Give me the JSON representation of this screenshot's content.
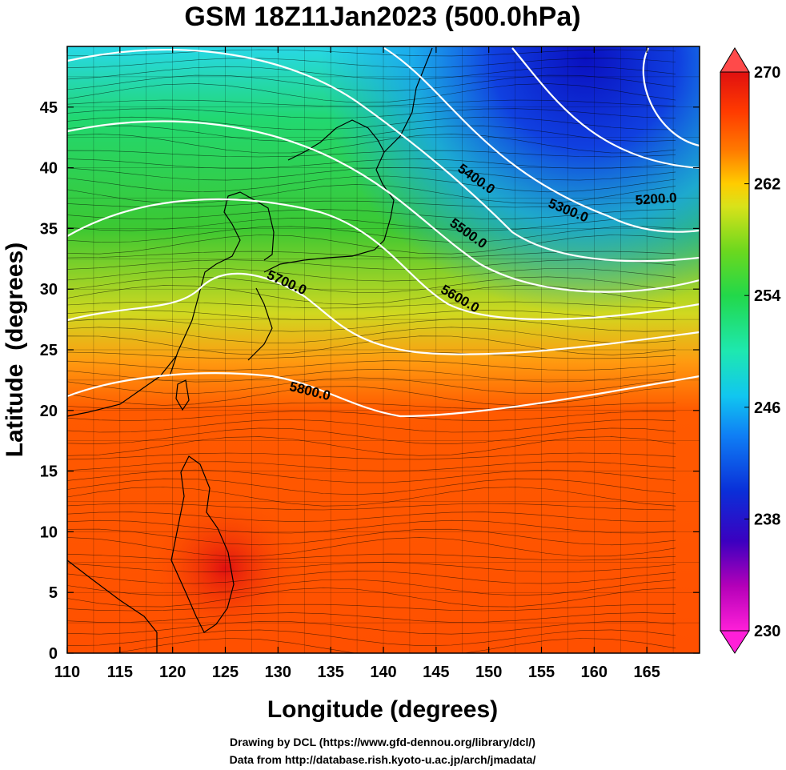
{
  "title": "GSM 18Z11Jan2023 (500.0hPa)",
  "x_axis": {
    "label": "Longitude (degrees)",
    "ticks": [
      "110",
      "115",
      "120",
      "125",
      "130",
      "135",
      "140",
      "145",
      "150",
      "155",
      "160",
      "165"
    ],
    "range": [
      110,
      170
    ]
  },
  "y_axis": {
    "label": "Latitude  (degrees)",
    "ticks": [
      "0",
      "5",
      "10",
      "15",
      "20",
      "25",
      "30",
      "35",
      "40",
      "45"
    ],
    "range": [
      0,
      50
    ]
  },
  "colorbar": {
    "min": 230,
    "max": 270,
    "ticks": [
      "230",
      "238",
      "246",
      "254",
      "262",
      "270"
    ],
    "colors": [
      "#ff1fd8",
      "#b400b8",
      "#3b00c0",
      "#0a2fd8",
      "#0f7ff5",
      "#11c6f0",
      "#1ee8b0",
      "#22d84a",
      "#34c81e",
      "#d9e21a",
      "#ffcc00",
      "#ff7a00",
      "#ff3a00",
      "#e01010"
    ]
  },
  "contours": [
    {
      "label": "5200.0",
      "value": 5200
    },
    {
      "label": "5300.0",
      "value": 5300
    },
    {
      "label": "5400.0",
      "value": 5400
    },
    {
      "label": "5500.0",
      "value": 5500
    },
    {
      "label": "5600.0",
      "value": 5600
    },
    {
      "label": "5700.0",
      "value": 5700
    },
    {
      "label": "5800.0",
      "value": 5800
    }
  ],
  "footer": {
    "line1": "Drawing by DCL (https://www.gfd-dennou.org/library/dcl/)",
    "line2": "Data from http://database.rish.kyoto-u.ac.jp/arch/jmadata/"
  },
  "colors": {
    "background": "#ffffff",
    "contour": "#ffffff",
    "frame": "#000000"
  }
}
